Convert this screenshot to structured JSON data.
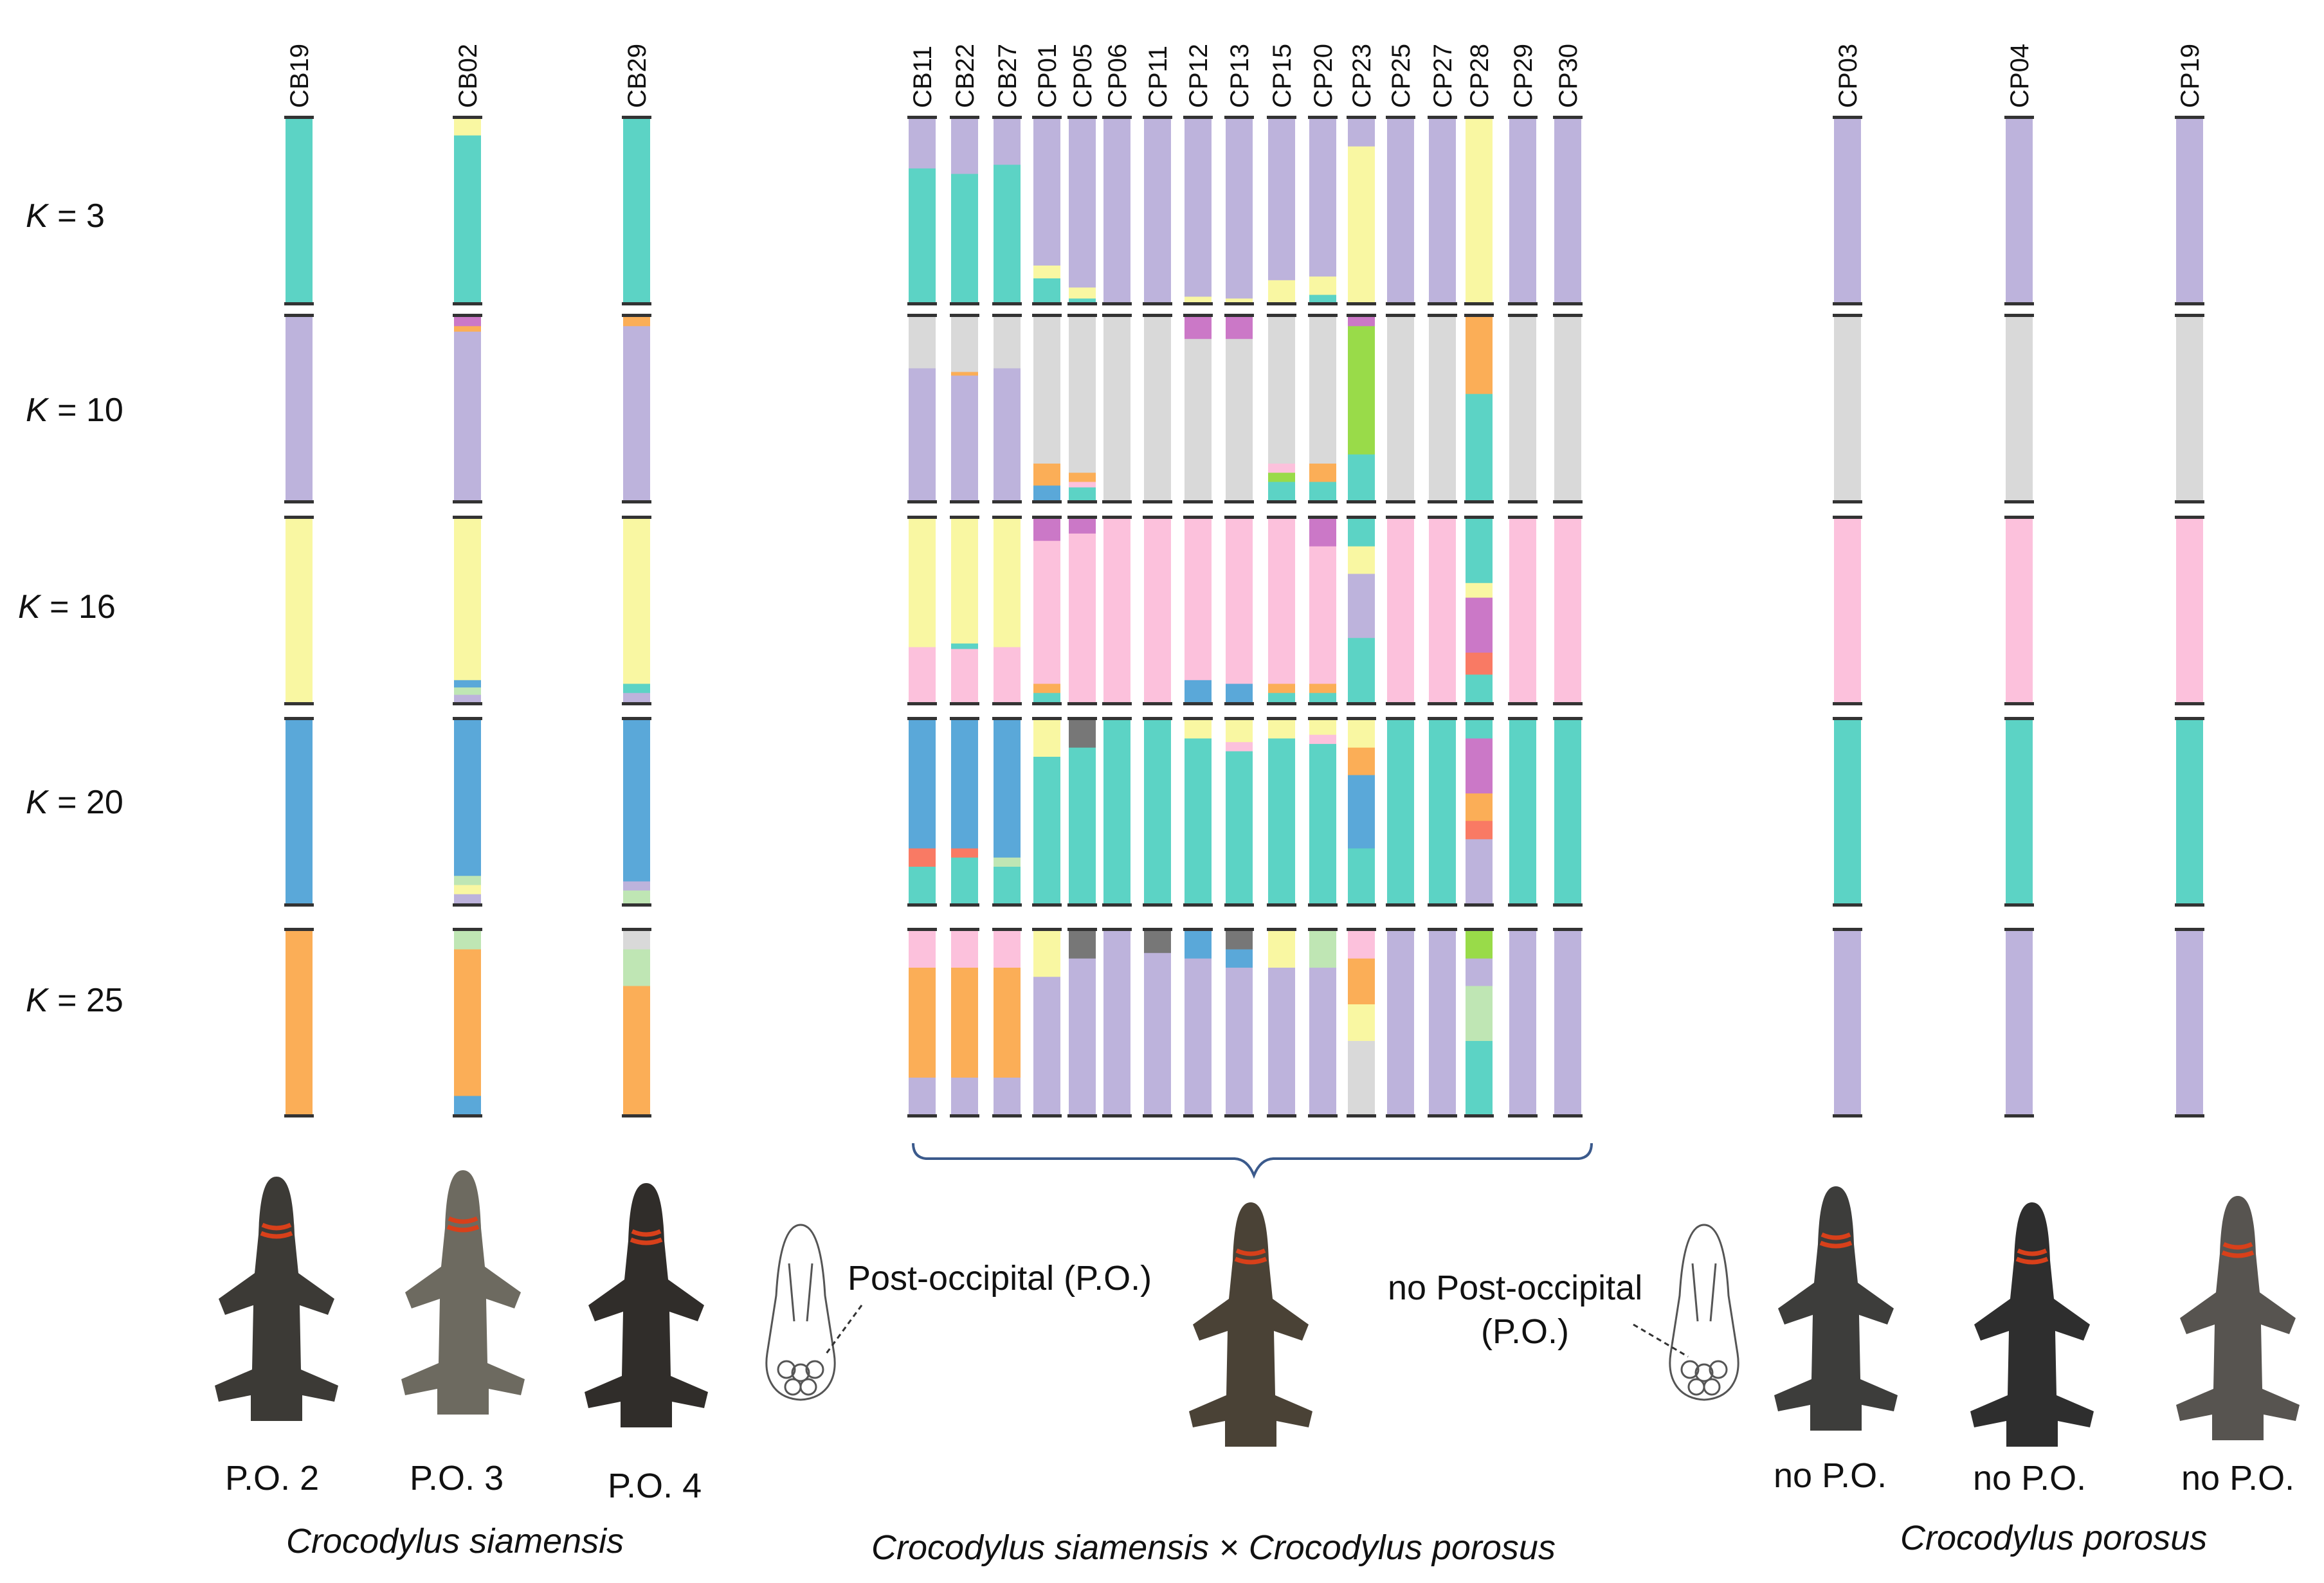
{
  "chart_data": {
    "type": "bar",
    "orientation": "vertical stacked (admixture / STRUCTURE plot)",
    "k_values": [
      3,
      10,
      16,
      20,
      25
    ],
    "k_label_prefix": "K",
    "k_labels": [
      "K = 3",
      "K = 10",
      "K = 16",
      "K = 20",
      "K = 25"
    ],
    "samples": [
      "CB19",
      "CB02",
      "CB29",
      "CB11",
      "CB22",
      "CB27",
      "CP01",
      "CP05",
      "CP06",
      "CP11",
      "CP12",
      "CP13",
      "CP15",
      "CP20",
      "CP23",
      "CP25",
      "CP27",
      "CP28",
      "CP29",
      "CP30",
      "CP03",
      "CP04",
      "CP19"
    ],
    "groups": [
      {
        "name": "Crocodylus siamensis",
        "samples": [
          "CB19",
          "CB02",
          "CB29"
        ],
        "phenotypes": [
          "P.O. 2",
          "P.O. 3",
          "P.O. 4"
        ]
      },
      {
        "name": "Crocodylus siamensis × Crocodylus porosus",
        "samples": [
          "CB11",
          "CB22",
          "CB27",
          "CP01",
          "CP05",
          "CP06",
          "CP11",
          "CP12",
          "CP13",
          "CP15",
          "CP20",
          "CP23",
          "CP25",
          "CP27",
          "CP28",
          "CP29",
          "CP30"
        ]
      },
      {
        "name": "Crocodylus porosus",
        "samples": [
          "CP03",
          "CP04",
          "CP19"
        ],
        "phenotypes": [
          "no P.O.",
          "no P.O.",
          "no P.O."
        ]
      }
    ],
    "palette": {
      "A": "#5cd3c5",
      "B": "#bdb3dc",
      "C": "#f9f7a2",
      "D": "#d9d9d9",
      "E": "#fcc1dc",
      "F": "#5aa8d9",
      "G": "#fbae57",
      "H": "#bfe6b4",
      "I": "#cb78c7",
      "J": "#99db49",
      "K": "#f97a64",
      "L": "#777777"
    },
    "proportions": {
      "3": {
        "CB19": [
          [
            "A",
            1.0
          ]
        ],
        "CB02": [
          [
            "C",
            0.09
          ],
          [
            "A",
            0.91
          ]
        ],
        "CB29": [
          [
            "A",
            1.0
          ]
        ],
        "CB11": [
          [
            "B",
            0.27
          ],
          [
            "A",
            0.73
          ]
        ],
        "CB22": [
          [
            "B",
            0.3
          ],
          [
            "A",
            0.7
          ]
        ],
        "CB27": [
          [
            "B",
            0.25
          ],
          [
            "A",
            0.75
          ]
        ],
        "CP01": [
          [
            "B",
            0.8
          ],
          [
            "C",
            0.07
          ],
          [
            "A",
            0.13
          ]
        ],
        "CP05": [
          [
            "B",
            0.92
          ],
          [
            "C",
            0.06
          ],
          [
            "A",
            0.02
          ]
        ],
        "CP06": [
          [
            "B",
            1.0
          ]
        ],
        "CP11": [
          [
            "B",
            1.0
          ]
        ],
        "CP12": [
          [
            "B",
            0.97
          ],
          [
            "C",
            0.03
          ]
        ],
        "CP13": [
          [
            "B",
            0.98
          ],
          [
            "C",
            0.02
          ]
        ],
        "CP15": [
          [
            "B",
            0.88
          ],
          [
            "C",
            0.12
          ]
        ],
        "CP20": [
          [
            "B",
            0.86
          ],
          [
            "C",
            0.1
          ],
          [
            "A",
            0.04
          ]
        ],
        "CP23": [
          [
            "B",
            0.15
          ],
          [
            "C",
            0.85
          ]
        ],
        "CP25": [
          [
            "B",
            1.0
          ]
        ],
        "CP27": [
          [
            "B",
            1.0
          ]
        ],
        "CP28": [
          [
            "C",
            1.0
          ]
        ],
        "CP29": [
          [
            "B",
            1.0
          ]
        ],
        "CP30": [
          [
            "B",
            1.0
          ]
        ],
        "CP03": [
          [
            "B",
            1.0
          ]
        ],
        "CP04": [
          [
            "B",
            1.0
          ]
        ],
        "CP19": [
          [
            "B",
            1.0
          ]
        ]
      },
      "10": {
        "CB19": [
          [
            "B",
            1.0
          ]
        ],
        "CB02": [
          [
            "I",
            0.05
          ],
          [
            "G",
            0.03
          ],
          [
            "B",
            0.92
          ]
        ],
        "CB29": [
          [
            "G",
            0.05
          ],
          [
            "B",
            0.95
          ]
        ],
        "CB11": [
          [
            "D",
            0.28
          ],
          [
            "B",
            0.72
          ]
        ],
        "CB22": [
          [
            "D",
            0.3
          ],
          [
            "G",
            0.02
          ],
          [
            "B",
            0.68
          ]
        ],
        "CB27": [
          [
            "D",
            0.28
          ],
          [
            "B",
            0.72
          ]
        ],
        "CP01": [
          [
            "D",
            0.8
          ],
          [
            "G",
            0.12
          ],
          [
            "F",
            0.08
          ]
        ],
        "CP05": [
          [
            "D",
            0.85
          ],
          [
            "G",
            0.05
          ],
          [
            "E",
            0.03
          ],
          [
            "A",
            0.07
          ]
        ],
        "CP06": [
          [
            "D",
            1.0
          ]
        ],
        "CP11": [
          [
            "D",
            1.0
          ]
        ],
        "CP12": [
          [
            "I",
            0.12
          ],
          [
            "D",
            0.88
          ]
        ],
        "CP13": [
          [
            "I",
            0.12
          ],
          [
            "D",
            0.88
          ]
        ],
        "CP15": [
          [
            "D",
            0.8
          ],
          [
            "E",
            0.05
          ],
          [
            "J",
            0.05
          ],
          [
            "A",
            0.1
          ]
        ],
        "CP20": [
          [
            "D",
            0.8
          ],
          [
            "G",
            0.1
          ],
          [
            "A",
            0.1
          ]
        ],
        "CP23": [
          [
            "I",
            0.05
          ],
          [
            "J",
            0.7
          ],
          [
            "A",
            0.25
          ]
        ],
        "CP25": [
          [
            "D",
            1.0
          ]
        ],
        "CP27": [
          [
            "D",
            1.0
          ]
        ],
        "CP28": [
          [
            "G",
            0.42
          ],
          [
            "A",
            0.58
          ]
        ],
        "CP29": [
          [
            "D",
            1.0
          ]
        ],
        "CP30": [
          [
            "D",
            1.0
          ]
        ],
        "CP03": [
          [
            "D",
            1.0
          ]
        ],
        "CP04": [
          [
            "D",
            1.0
          ]
        ],
        "CP19": [
          [
            "D",
            1.0
          ]
        ]
      },
      "16": {
        "CB19": [
          [
            "C",
            1.0
          ]
        ],
        "CB02": [
          [
            "C",
            0.88
          ],
          [
            "F",
            0.04
          ],
          [
            "H",
            0.04
          ],
          [
            "B",
            0.04
          ]
        ],
        "CB29": [
          [
            "C",
            0.9
          ],
          [
            "A",
            0.05
          ],
          [
            "B",
            0.05
          ]
        ],
        "CB11": [
          [
            "C",
            0.7
          ],
          [
            "E",
            0.3
          ]
        ],
        "CB22": [
          [
            "C",
            0.68
          ],
          [
            "A",
            0.03
          ],
          [
            "E",
            0.29
          ]
        ],
        "CB27": [
          [
            "C",
            0.7
          ],
          [
            "E",
            0.3
          ]
        ],
        "CP01": [
          [
            "I",
            0.12
          ],
          [
            "E",
            0.78
          ],
          [
            "G",
            0.05
          ],
          [
            "A",
            0.05
          ]
        ],
        "CP05": [
          [
            "I",
            0.08
          ],
          [
            "E",
            0.92
          ]
        ],
        "CP06": [
          [
            "E",
            1.0
          ]
        ],
        "CP11": [
          [
            "E",
            1.0
          ]
        ],
        "CP12": [
          [
            "E",
            0.88
          ],
          [
            "F",
            0.12
          ]
        ],
        "CP13": [
          [
            "E",
            0.9
          ],
          [
            "F",
            0.1
          ]
        ],
        "CP15": [
          [
            "E",
            0.9
          ],
          [
            "G",
            0.05
          ],
          [
            "A",
            0.05
          ]
        ],
        "CP20": [
          [
            "I",
            0.15
          ],
          [
            "E",
            0.75
          ],
          [
            "G",
            0.05
          ],
          [
            "A",
            0.05
          ]
        ],
        "CP23": [
          [
            "A",
            0.15
          ],
          [
            "C",
            0.15
          ],
          [
            "B",
            0.35
          ],
          [
            "A",
            0.35
          ]
        ],
        "CP25": [
          [
            "E",
            1.0
          ]
        ],
        "CP27": [
          [
            "E",
            1.0
          ]
        ],
        "CP28": [
          [
            "A",
            0.35
          ],
          [
            "C",
            0.08
          ],
          [
            "I",
            0.3
          ],
          [
            "K",
            0.12
          ],
          [
            "A",
            0.15
          ]
        ],
        "CP29": [
          [
            "E",
            1.0
          ]
        ],
        "CP30": [
          [
            "E",
            1.0
          ]
        ],
        "CP03": [
          [
            "E",
            1.0
          ]
        ],
        "CP04": [
          [
            "E",
            1.0
          ]
        ],
        "CP19": [
          [
            "E",
            1.0
          ]
        ]
      },
      "20": {
        "CB19": [
          [
            "F",
            1.0
          ]
        ],
        "CB02": [
          [
            "F",
            0.85
          ],
          [
            "H",
            0.05
          ],
          [
            "C",
            0.05
          ],
          [
            "B",
            0.05
          ]
        ],
        "CB29": [
          [
            "F",
            0.88
          ],
          [
            "B",
            0.05
          ],
          [
            "H",
            0.07
          ]
        ],
        "CB11": [
          [
            "F",
            0.7
          ],
          [
            "K",
            0.1
          ],
          [
            "A",
            0.2
          ]
        ],
        "CB22": [
          [
            "F",
            0.7
          ],
          [
            "K",
            0.05
          ],
          [
            "A",
            0.25
          ]
        ],
        "CB27": [
          [
            "F",
            0.75
          ],
          [
            "H",
            0.05
          ],
          [
            "A",
            0.2
          ]
        ],
        "CP01": [
          [
            "C",
            0.2
          ],
          [
            "A",
            0.8
          ]
        ],
        "CP05": [
          [
            "L",
            0.15
          ],
          [
            "A",
            0.85
          ]
        ],
        "CP06": [
          [
            "A",
            1.0
          ]
        ],
        "CP11": [
          [
            "A",
            1.0
          ]
        ],
        "CP12": [
          [
            "C",
            0.1
          ],
          [
            "A",
            0.9
          ]
        ],
        "CP13": [
          [
            "C",
            0.12
          ],
          [
            "E",
            0.05
          ],
          [
            "A",
            0.83
          ]
        ],
        "CP15": [
          [
            "C",
            0.1
          ],
          [
            "A",
            0.9
          ]
        ],
        "CP20": [
          [
            "C",
            0.08
          ],
          [
            "E",
            0.05
          ],
          [
            "A",
            0.87
          ]
        ],
        "CP23": [
          [
            "C",
            0.15
          ],
          [
            "G",
            0.15
          ],
          [
            "F",
            0.4
          ],
          [
            "A",
            0.3
          ]
        ],
        "CP25": [
          [
            "A",
            1.0
          ]
        ],
        "CP27": [
          [
            "A",
            1.0
          ]
        ],
        "CP28": [
          [
            "A",
            0.1
          ],
          [
            "I",
            0.3
          ],
          [
            "G",
            0.15
          ],
          [
            "K",
            0.1
          ],
          [
            "B",
            0.35
          ]
        ],
        "CP29": [
          [
            "A",
            1.0
          ]
        ],
        "CP30": [
          [
            "A",
            1.0
          ]
        ],
        "CP03": [
          [
            "A",
            1.0
          ]
        ],
        "CP04": [
          [
            "A",
            1.0
          ]
        ],
        "CP19": [
          [
            "A",
            1.0
          ]
        ]
      },
      "25": {
        "CB19": [
          [
            "G",
            1.0
          ]
        ],
        "CB02": [
          [
            "H",
            0.1
          ],
          [
            "G",
            0.8
          ],
          [
            "F",
            0.1
          ]
        ],
        "CB29": [
          [
            "D",
            0.1
          ],
          [
            "H",
            0.2
          ],
          [
            "G",
            0.7
          ]
        ],
        "CB11": [
          [
            "E",
            0.2
          ],
          [
            "G",
            0.6
          ],
          [
            "B",
            0.2
          ]
        ],
        "CB22": [
          [
            "E",
            0.2
          ],
          [
            "G",
            0.6
          ],
          [
            "B",
            0.2
          ]
        ],
        "CB27": [
          [
            "E",
            0.2
          ],
          [
            "G",
            0.6
          ],
          [
            "B",
            0.2
          ]
        ],
        "CP01": [
          [
            "C",
            0.25
          ],
          [
            "B",
            0.75
          ]
        ],
        "CP05": [
          [
            "L",
            0.15
          ],
          [
            "B",
            0.85
          ]
        ],
        "CP06": [
          [
            "B",
            1.0
          ]
        ],
        "CP11": [
          [
            "L",
            0.12
          ],
          [
            "B",
            0.88
          ]
        ],
        "CP12": [
          [
            "F",
            0.15
          ],
          [
            "B",
            0.85
          ]
        ],
        "CP13": [
          [
            "L",
            0.1
          ],
          [
            "F",
            0.1
          ],
          [
            "B",
            0.8
          ]
        ],
        "CP15": [
          [
            "C",
            0.2
          ],
          [
            "B",
            0.8
          ]
        ],
        "CP20": [
          [
            "H",
            0.2
          ],
          [
            "B",
            0.8
          ]
        ],
        "CP23": [
          [
            "E",
            0.15
          ],
          [
            "G",
            0.25
          ],
          [
            "C",
            0.2
          ],
          [
            "D",
            0.4
          ]
        ],
        "CP25": [
          [
            "B",
            1.0
          ]
        ],
        "CP27": [
          [
            "B",
            1.0
          ]
        ],
        "CP28": [
          [
            "J",
            0.15
          ],
          [
            "B",
            0.15
          ],
          [
            "H",
            0.3
          ],
          [
            "A",
            0.4
          ]
        ],
        "CP29": [
          [
            "B",
            1.0
          ]
        ],
        "CP30": [
          [
            "B",
            1.0
          ]
        ],
        "CP03": [
          [
            "B",
            1.0
          ]
        ],
        "CP04": [
          [
            "B",
            1.0
          ]
        ],
        "CP19": [
          [
            "B",
            1.0
          ]
        ]
      }
    }
  },
  "labels": {
    "po_2": "P.O. 2",
    "po_3": "P.O. 3",
    "po_4": "P.O. 4",
    "no_po_1": "no P.O.",
    "no_po_2": "no P.O.",
    "no_po_3": "no P.O.",
    "siamensis": "Crocodylus siamensis",
    "hybrid": "Crocodylus siamensis × Crocodylus porosus",
    "porosus": "Crocodylus porosus",
    "post_occipital": "Post-occipital (P.O.)",
    "no_post_occipital_line1": "no Post-occipital",
    "no_post_occipital_line2": "(P.O.)"
  }
}
